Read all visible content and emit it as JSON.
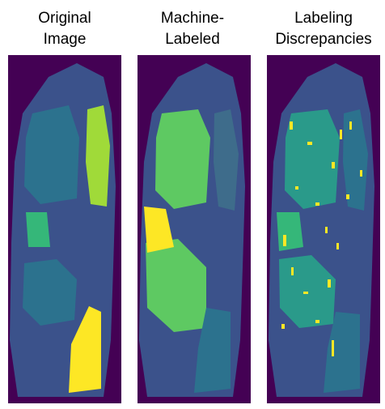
{
  "panels": [
    {
      "title_lines": [
        "Original",
        "Image"
      ]
    },
    {
      "title_lines": [
        "Machine-",
        "Labeled"
      ]
    },
    {
      "title_lines": [
        "Labeling",
        "Discrepancies"
      ]
    }
  ]
}
